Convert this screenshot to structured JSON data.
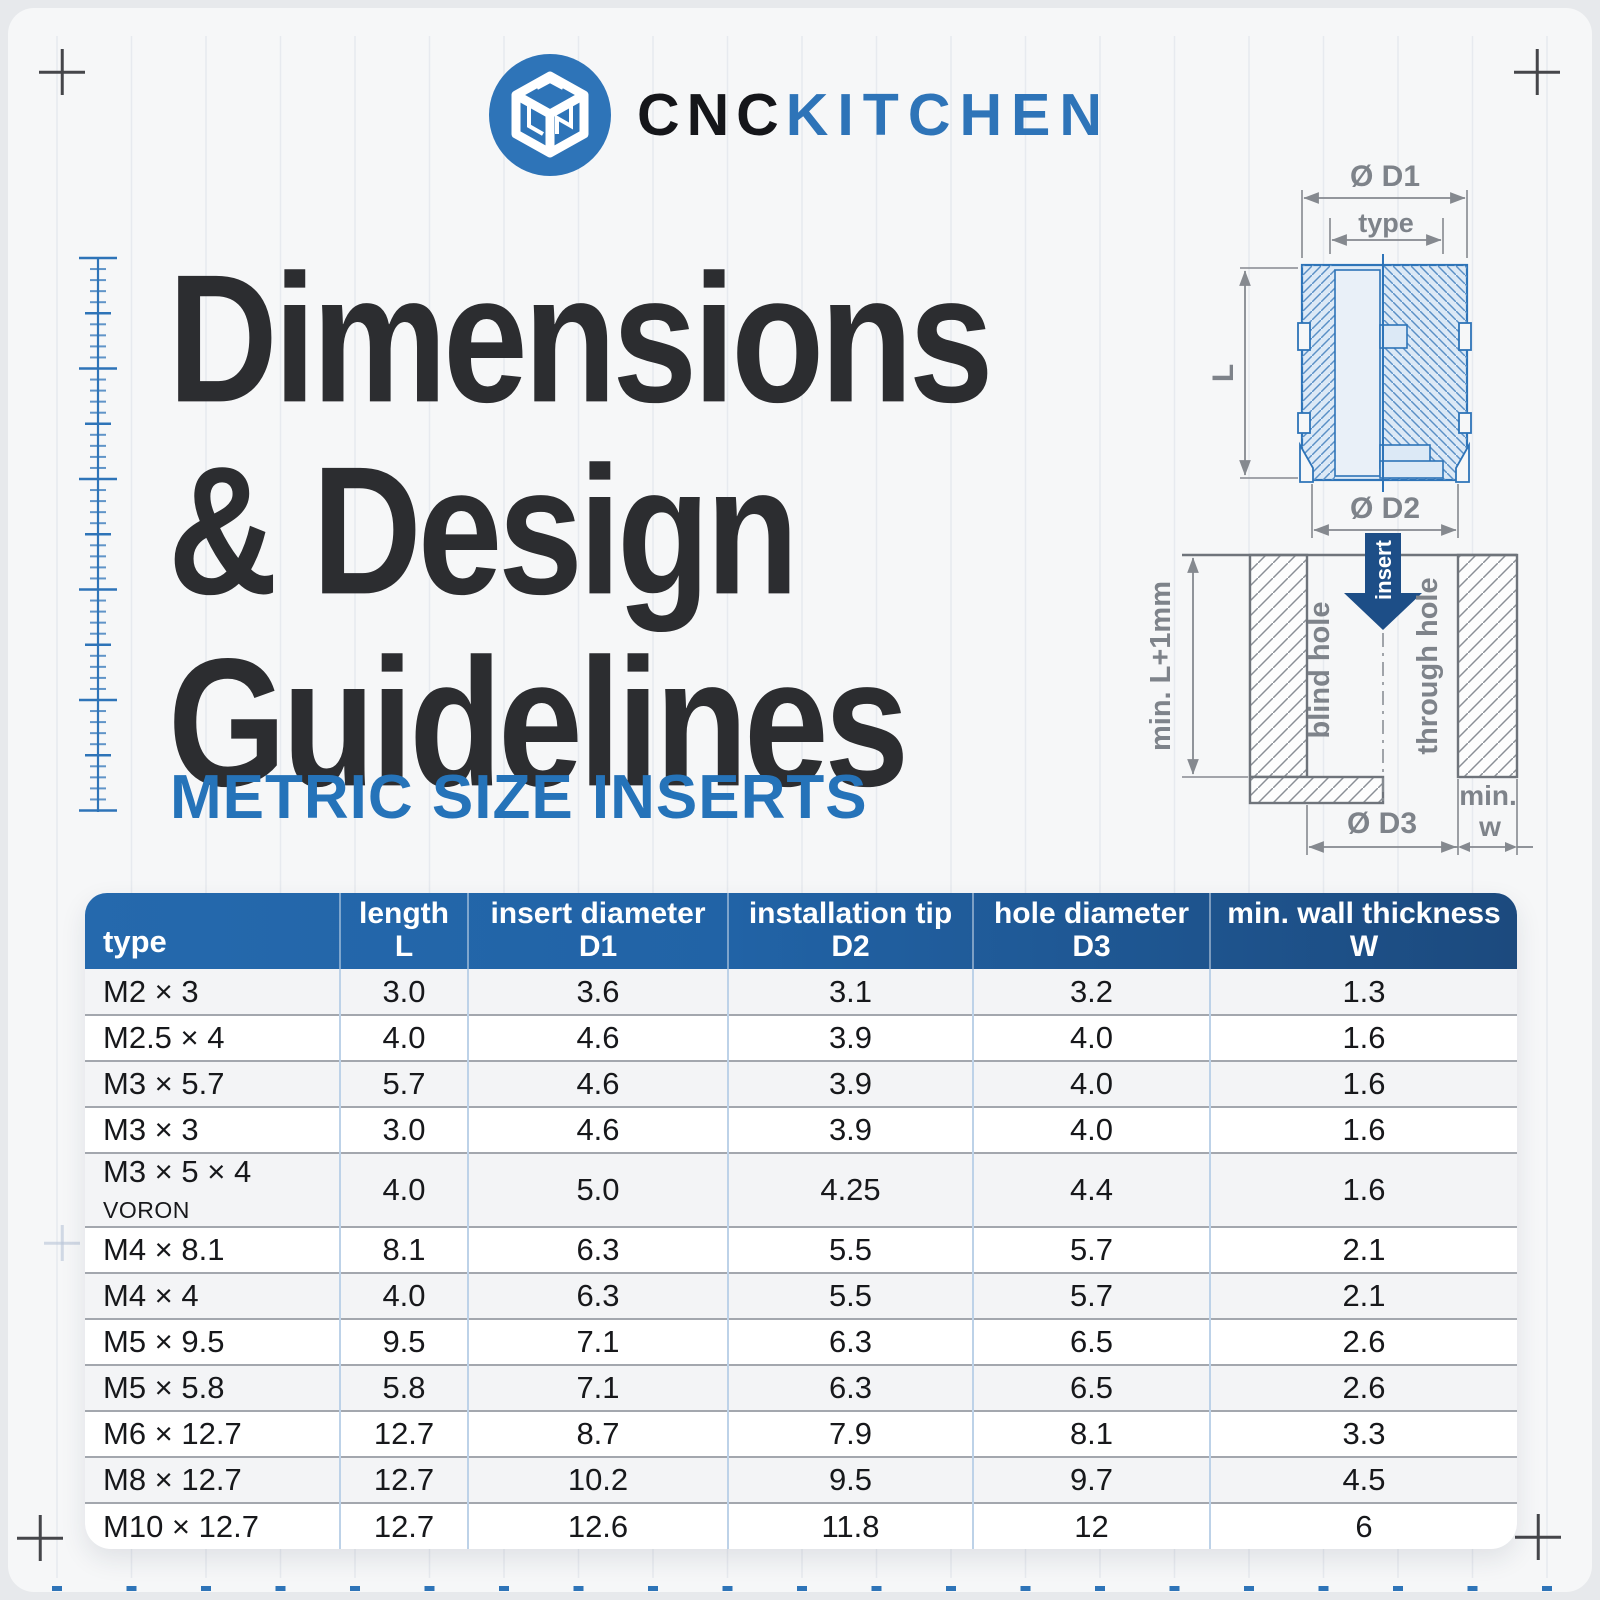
{
  "brand": {
    "logo_cnc": "CNC",
    "logo_kitchen": "KITCHEN"
  },
  "title": {
    "line1": "Dimensions",
    "line2": "& Design",
    "line3": "Guidelines",
    "subtitle": "METRIC SIZE INSERTS"
  },
  "figures": {
    "insert_section": {
      "dim_d1": "Ø D1",
      "dim_type": "type",
      "dim_l": "L",
      "dim_d2": "Ø D2"
    },
    "hole_section": {
      "dim_depth": "min. L+1mm",
      "blind_hole_label": "blind hole",
      "insert_arrow_label": "insert",
      "through_hole_label": "through hole",
      "dim_d3": "Ø D3",
      "dim_min": "min.",
      "dim_w": "w"
    }
  },
  "colors": {
    "accent_blue": "#2e74b8",
    "subtitle_blue": "#2573b9",
    "header_gradient_left": "#2569ad",
    "header_gradient_right": "#1c4a7e",
    "arrow_navy": "#1d4e87",
    "title_dark": "#2c2d30"
  },
  "table": {
    "columns": [
      {
        "label": "type",
        "symbol": ""
      },
      {
        "label": "length",
        "symbol": "L"
      },
      {
        "label": "insert diameter",
        "symbol": "D1"
      },
      {
        "label": "installation tip",
        "symbol": "D2"
      },
      {
        "label": "hole diameter",
        "symbol": "D3"
      },
      {
        "label": "min. wall thickness",
        "symbol": "W"
      }
    ],
    "rows": [
      {
        "type": "M2 × 3",
        "suffix": "",
        "values": [
          "3.0",
          "3.6",
          "3.1",
          "3.2",
          "1.3"
        ]
      },
      {
        "type": "M2.5 × 4",
        "suffix": "",
        "values": [
          "4.0",
          "4.6",
          "3.9",
          "4.0",
          "1.6"
        ]
      },
      {
        "type": "M3 × 5.7",
        "suffix": "",
        "values": [
          "5.7",
          "4.6",
          "3.9",
          "4.0",
          "1.6"
        ]
      },
      {
        "type": "M3 × 3",
        "suffix": "",
        "values": [
          "3.0",
          "4.6",
          "3.9",
          "4.0",
          "1.6"
        ]
      },
      {
        "type": "M3 × 5 × 4",
        "suffix": "VORON",
        "values": [
          "4.0",
          "5.0",
          "4.25",
          "4.4",
          "1.6"
        ]
      },
      {
        "type": "M4 × 8.1",
        "suffix": "",
        "values": [
          "8.1",
          "6.3",
          "5.5",
          "5.7",
          "2.1"
        ]
      },
      {
        "type": "M4 × 4",
        "suffix": "",
        "values": [
          "4.0",
          "6.3",
          "5.5",
          "5.7",
          "2.1"
        ]
      },
      {
        "type": "M5 × 9.5",
        "suffix": "",
        "values": [
          "9.5",
          "7.1",
          "6.3",
          "6.5",
          "2.6"
        ]
      },
      {
        "type": "M5 × 5.8",
        "suffix": "",
        "values": [
          "5.8",
          "7.1",
          "6.3",
          "6.5",
          "2.6"
        ]
      },
      {
        "type": "M6 × 12.7",
        "suffix": "",
        "values": [
          "12.7",
          "8.7",
          "7.9",
          "8.1",
          "3.3"
        ]
      },
      {
        "type": "M8 × 12.7",
        "suffix": "",
        "values": [
          "12.7",
          "10.2",
          "9.5",
          "9.7",
          "4.5"
        ]
      },
      {
        "type": "M10 × 12.7",
        "suffix": "",
        "values": [
          "12.7",
          "12.6",
          "11.8",
          "12",
          "6"
        ]
      }
    ]
  }
}
